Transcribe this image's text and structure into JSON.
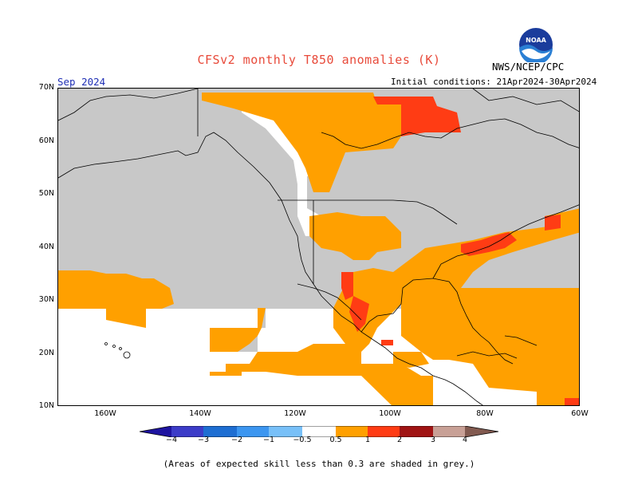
{
  "header": {
    "title": "CFSv2 monthly T850 anomalies (K)",
    "agency": "NWS/NCEP/CPC",
    "month": "Sep 2024",
    "initial_conditions": "Initial conditions: 21Apr2024-30Apr2024",
    "logo_text": "NOAA"
  },
  "map": {
    "lat_labels": [
      "70N",
      "60N",
      "50N",
      "40N",
      "30N",
      "20N",
      "10N"
    ],
    "lon_labels": [
      "160W",
      "140W",
      "120W",
      "100W",
      "80W",
      "60W"
    ],
    "lat_range": [
      10,
      70
    ],
    "lon_range": [
      -170,
      -60
    ],
    "colors": {
      "grey_low_skill": "#c8c8c8",
      "anom_0_5_1": "#ffa000",
      "anom_1_2": "#ff3c14",
      "anom_2_3": "#a01414",
      "land_outline": "#000000"
    }
  },
  "colorbar": {
    "ticks": [
      "−4",
      "−3",
      "−2",
      "−1",
      "−0.5",
      "0.5",
      "1",
      "2",
      "3",
      "4"
    ],
    "colors": [
      "#1e14a0",
      "#3c3cc8",
      "#1e6ed2",
      "#3c96f0",
      "#78c0f8",
      "#ffffff",
      "#ffa000",
      "#ff3c14",
      "#a01414",
      "#c8a096",
      "#825a50"
    ]
  },
  "footnote": "(Areas of expected skill less than 0.3 are shaded in grey.)"
}
